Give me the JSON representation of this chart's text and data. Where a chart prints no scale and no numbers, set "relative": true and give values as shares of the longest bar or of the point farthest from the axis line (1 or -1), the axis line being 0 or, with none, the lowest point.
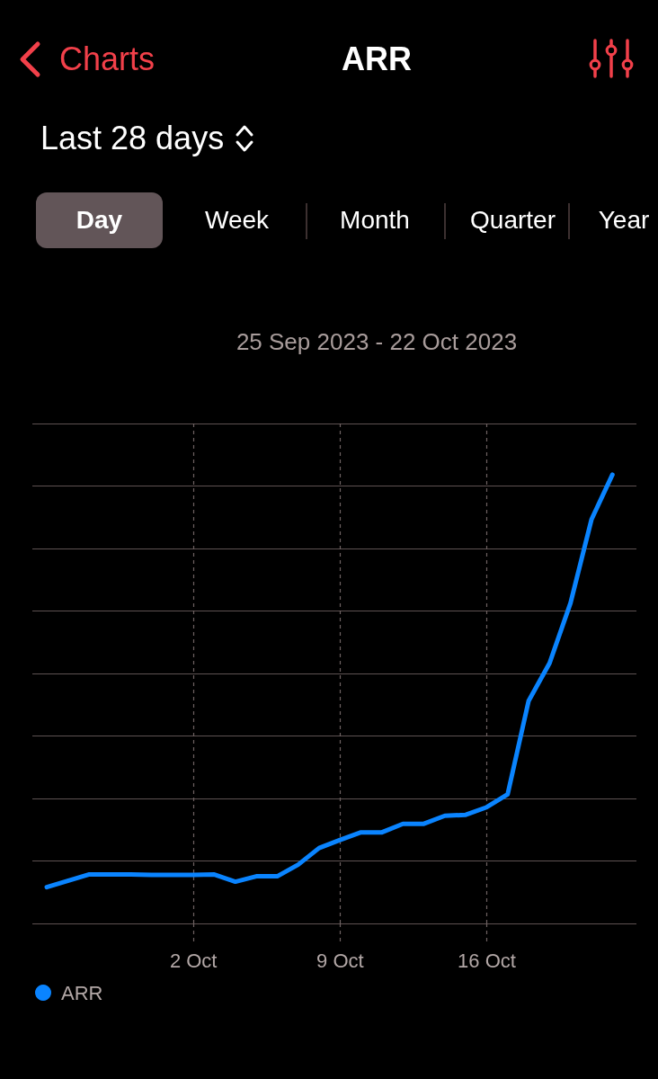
{
  "chart_data": {
    "type": "line",
    "title": "ARR",
    "subtitle": "25 Sep 2023 - 22 Oct 2023",
    "annotations": [
      "Charts",
      "Last 28 days",
      "Day",
      "Week",
      "Month",
      "Quarter",
      "Year"
    ],
    "x": [
      "2023-09-25",
      "2023-09-26",
      "2023-09-27",
      "2023-09-28",
      "2023-09-29",
      "2023-09-30",
      "2023-10-01",
      "2023-10-02",
      "2023-10-03",
      "2023-10-04",
      "2023-10-05",
      "2023-10-06",
      "2023-10-07",
      "2023-10-08",
      "2023-10-09",
      "2023-10-10",
      "2023-10-11",
      "2023-10-12",
      "2023-10-13",
      "2023-10-14",
      "2023-10-15",
      "2023-10-16",
      "2023-10-17",
      "2023-10-18",
      "2023-10-19",
      "2023-10-20",
      "2023-10-21",
      "2023-10-22"
    ],
    "series": [
      {
        "name": "ARR",
        "color": "#0a84ff",
        "values": [
          0.081,
          0.095,
          0.109,
          0.109,
          0.109,
          0.108,
          0.108,
          0.108,
          0.109,
          0.093,
          0.105,
          0.105,
          0.131,
          0.168,
          0.186,
          0.203,
          0.203,
          0.222,
          0.222,
          0.24,
          0.242,
          0.259,
          0.288,
          0.496,
          0.58,
          0.714,
          0.9,
          1
        ]
      }
    ],
    "relative": true,
    "xlim": [
      "2023-09-24T07:30",
      "2023-10-23T03:30"
    ],
    "xticks": [
      {
        "value": "2023-10-02",
        "label": "2 Oct"
      },
      {
        "value": "2023-10-09",
        "label": "9 Oct"
      },
      {
        "value": "2023-10-16",
        "label": "16 Oct"
      }
    ],
    "grid": true,
    "legend": "bottom left"
  }
}
